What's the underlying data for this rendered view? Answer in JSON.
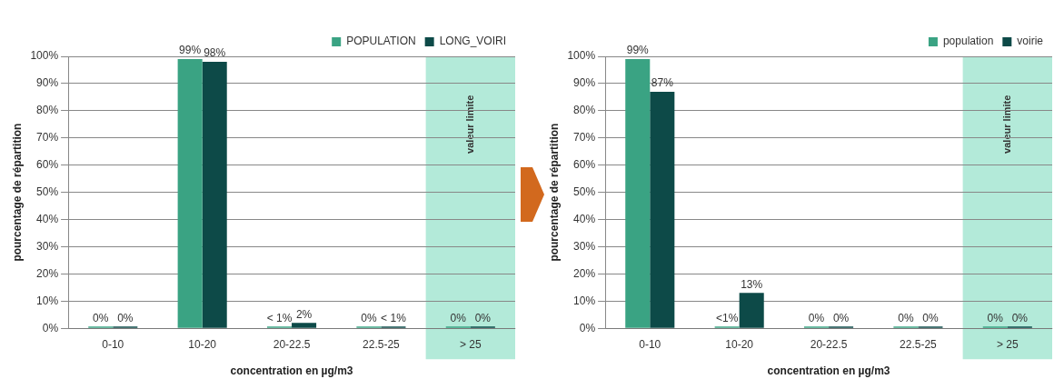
{
  "chart_data": [
    {
      "type": "bar",
      "xlabel": "concentration en µg/m3",
      "ylabel": "pourcentage de répartition",
      "categories": [
        "0-10",
        "10-20",
        "20-22.5",
        "22.5-25",
        "> 25"
      ],
      "series": [
        {
          "name": "POPULATION",
          "color": "#3aa383",
          "values": [
            0,
            99,
            0.5,
            0,
            0
          ],
          "value_labels": [
            "0%",
            "99%",
            "< 1%",
            "0%",
            "0%"
          ]
        },
        {
          "name": "LONG_VOIRI",
          "color": "#0d4a48",
          "values": [
            0,
            98,
            2,
            0.5,
            0
          ],
          "value_labels": [
            "0%",
            "98%",
            "2%",
            "< 1%",
            "0%"
          ]
        }
      ],
      "ylim": [
        0,
        100
      ],
      "yticks": [
        {
          "value": 0,
          "label": "0%"
        },
        {
          "value": 10,
          "label": "10%"
        },
        {
          "value": 20,
          "label": "20%"
        },
        {
          "value": 30,
          "label": "30%"
        },
        {
          "value": 40,
          "label": "40%"
        },
        {
          "value": 50,
          "label": "50%"
        },
        {
          "value": 60,
          "label": "60%"
        },
        {
          "value": 70,
          "label": "70%"
        },
        {
          "value": 80,
          "label": "80%"
        },
        {
          "value": 90,
          "label": "90%"
        },
        {
          "value": 100,
          "label": "100%"
        }
      ],
      "bands": [
        {
          "axis": "x",
          "from": "> 25",
          "to": "> 25",
          "label": "valeur limite",
          "color": "#b3ead9"
        }
      ],
      "grid": "y",
      "legend": "top right"
    },
    {
      "type": "bar",
      "xlabel": "concentration en µg/m3",
      "ylabel": "pourcentage de répartition",
      "categories": [
        "0-10",
        "10-20",
        "20-22.5",
        "22.5-25",
        "> 25"
      ],
      "series": [
        {
          "name": "population",
          "color": "#3aa383",
          "values": [
            99,
            0.5,
            0,
            0,
            0
          ],
          "value_labels": [
            "99%",
            "<1%",
            "0%",
            "0%",
            "0%"
          ]
        },
        {
          "name": "voirie",
          "color": "#0d4a48",
          "values": [
            87,
            13,
            0,
            0,
            0
          ],
          "value_labels": [
            "87%",
            "13%",
            "0%",
            "0%",
            "0%"
          ]
        }
      ],
      "ylim": [
        0,
        100
      ],
      "yticks": [
        {
          "value": 0,
          "label": "0%"
        },
        {
          "value": 10,
          "label": "10%"
        },
        {
          "value": 20,
          "label": "20%"
        },
        {
          "value": 30,
          "label": "30%"
        },
        {
          "value": 40,
          "label": "40%"
        },
        {
          "value": 50,
          "label": "50%"
        },
        {
          "value": 60,
          "label": "60%"
        },
        {
          "value": 70,
          "label": "70%"
        },
        {
          "value": 80,
          "label": "80%"
        },
        {
          "value": 90,
          "label": "90%"
        },
        {
          "value": 100,
          "label": "100%"
        }
      ],
      "bands": [
        {
          "axis": "x",
          "from": "> 25",
          "to": "> 25",
          "label": "valeur limite",
          "color": "#b3ead9"
        }
      ],
      "grid": "y",
      "legend": "top right"
    }
  ]
}
